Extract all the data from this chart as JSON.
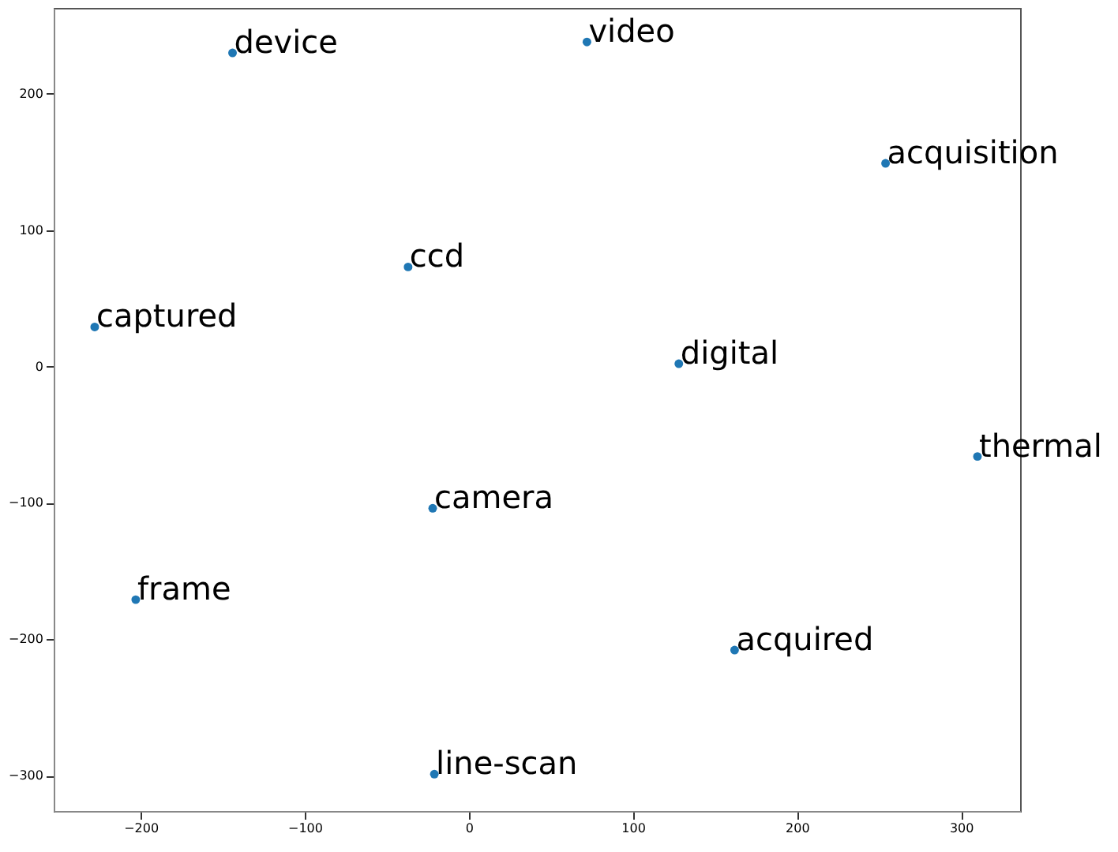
{
  "chart_data": {
    "type": "scatter",
    "x": [
      -144,
      72,
      254,
      -37,
      -228,
      128,
      310,
      -22,
      -203,
      162,
      -21
    ],
    "series": [
      {
        "color": "#1f77b4",
        "values": [
          230,
          238,
          149,
          73,
          29,
          2,
          -66,
          -104,
          -171,
          -208,
          -299
        ]
      }
    ],
    "annotations": [
      {
        "text": "device",
        "x": -144,
        "y": 230
      },
      {
        "text": "video",
        "x": 72,
        "y": 238
      },
      {
        "text": "acquisition",
        "x": 254,
        "y": 149
      },
      {
        "text": "ccd",
        "x": -37,
        "y": 73
      },
      {
        "text": "captured",
        "x": -228,
        "y": 29
      },
      {
        "text": "digital",
        "x": 128,
        "y": 2
      },
      {
        "text": "thermal",
        "x": 310,
        "y": -66
      },
      {
        "text": "camera",
        "x": -22,
        "y": -104
      },
      {
        "text": "frame",
        "x": -203,
        "y": -171
      },
      {
        "text": "acquired",
        "x": 162,
        "y": -208
      },
      {
        "text": "line-scan",
        "x": -21,
        "y": -299
      }
    ],
    "xlim": [
      -253,
      336
    ],
    "ylim": [
      -326,
      263
    ],
    "xticks": [
      {
        "value": -200,
        "label": "−200"
      },
      {
        "value": -100,
        "label": "−100"
      },
      0,
      100,
      200,
      300
    ],
    "yticks": [
      {
        "value": -300,
        "label": "−300"
      },
      {
        "value": -200,
        "label": "−200"
      },
      {
        "value": -100,
        "label": "−100"
      },
      0,
      100,
      200
    ],
    "grid": false,
    "marker": "circle"
  }
}
